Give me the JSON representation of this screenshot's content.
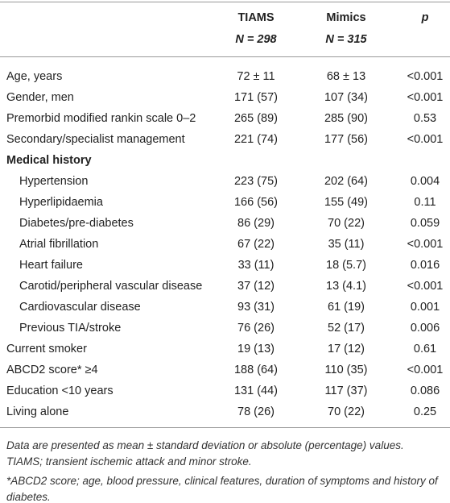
{
  "table": {
    "header": {
      "columns": [
        "TIAMS",
        "Mimics",
        "p"
      ],
      "n": [
        "N = 298",
        "N = 315"
      ]
    },
    "rows": [
      {
        "label": "Age, years",
        "tiams": "72 ± 11",
        "mimics": "68 ± 13",
        "p": "<0.001"
      },
      {
        "label": "Gender, men",
        "tiams": "171 (57)",
        "mimics": "107 (34)",
        "p": "<0.001"
      },
      {
        "label": "Premorbid modified rankin scale 0–2",
        "tiams": "265 (89)",
        "mimics": "285 (90)",
        "p": "0.53"
      },
      {
        "label": "Secondary/specialist management",
        "tiams": "221 (74)",
        "mimics": "177 (56)",
        "p": "<0.001"
      },
      {
        "label": "Medical history",
        "rows": [
          {
            "label": "Hypertension",
            "tiams": "223 (75)",
            "mimics": "202 (64)",
            "p": "0.004"
          },
          {
            "label": "Hyperlipidaemia",
            "tiams": "166 (56)",
            "mimics": "155 (49)",
            "p": "0.11"
          },
          {
            "label": "Diabetes/pre-diabetes",
            "tiams": "86 (29)",
            "mimics": "70 (22)",
            "p": "0.059"
          },
          {
            "label": "Atrial fibrillation",
            "tiams": "67 (22)",
            "mimics": "35 (11)",
            "p": "<0.001"
          },
          {
            "label": "Heart failure",
            "tiams": "33 (11)",
            "mimics": "18 (5.7)",
            "p": "0.016"
          },
          {
            "label": "Carotid/peripheral vascular disease",
            "tiams": "37 (12)",
            "mimics": "13 (4.1)",
            "p": "<0.001"
          },
          {
            "label": "Cardiovascular disease",
            "tiams": "93 (31)",
            "mimics": "61 (19)",
            "p": "0.001"
          },
          {
            "label": "Previous TIA/stroke",
            "tiams": "76 (26)",
            "mimics": "52 (17)",
            "p": "0.006"
          }
        ]
      },
      {
        "label": "Current smoker",
        "tiams": "19 (13)",
        "mimics": "17 (12)",
        "p": "0.61"
      },
      {
        "label": "ABCD2 score* ≥4",
        "tiams": "188 (64)",
        "mimics": "110 (35)",
        "p": "<0.001"
      },
      {
        "label": "Education <10 years",
        "tiams": "131 (44)",
        "mimics": "117 (37)",
        "p": "0.086"
      },
      {
        "label": "Living alone",
        "tiams": "78 (26)",
        "mimics": "70 (22)",
        "p": "0.25"
      }
    ],
    "notes": [
      "Data are presented as mean ± standard deviation or absolute (percentage) values.",
      "TIAMS; transient ischemic attack and minor stroke.",
      "*ABCD2 score; age, blood pressure, clinical features, duration of symptoms and history of diabetes."
    ]
  }
}
